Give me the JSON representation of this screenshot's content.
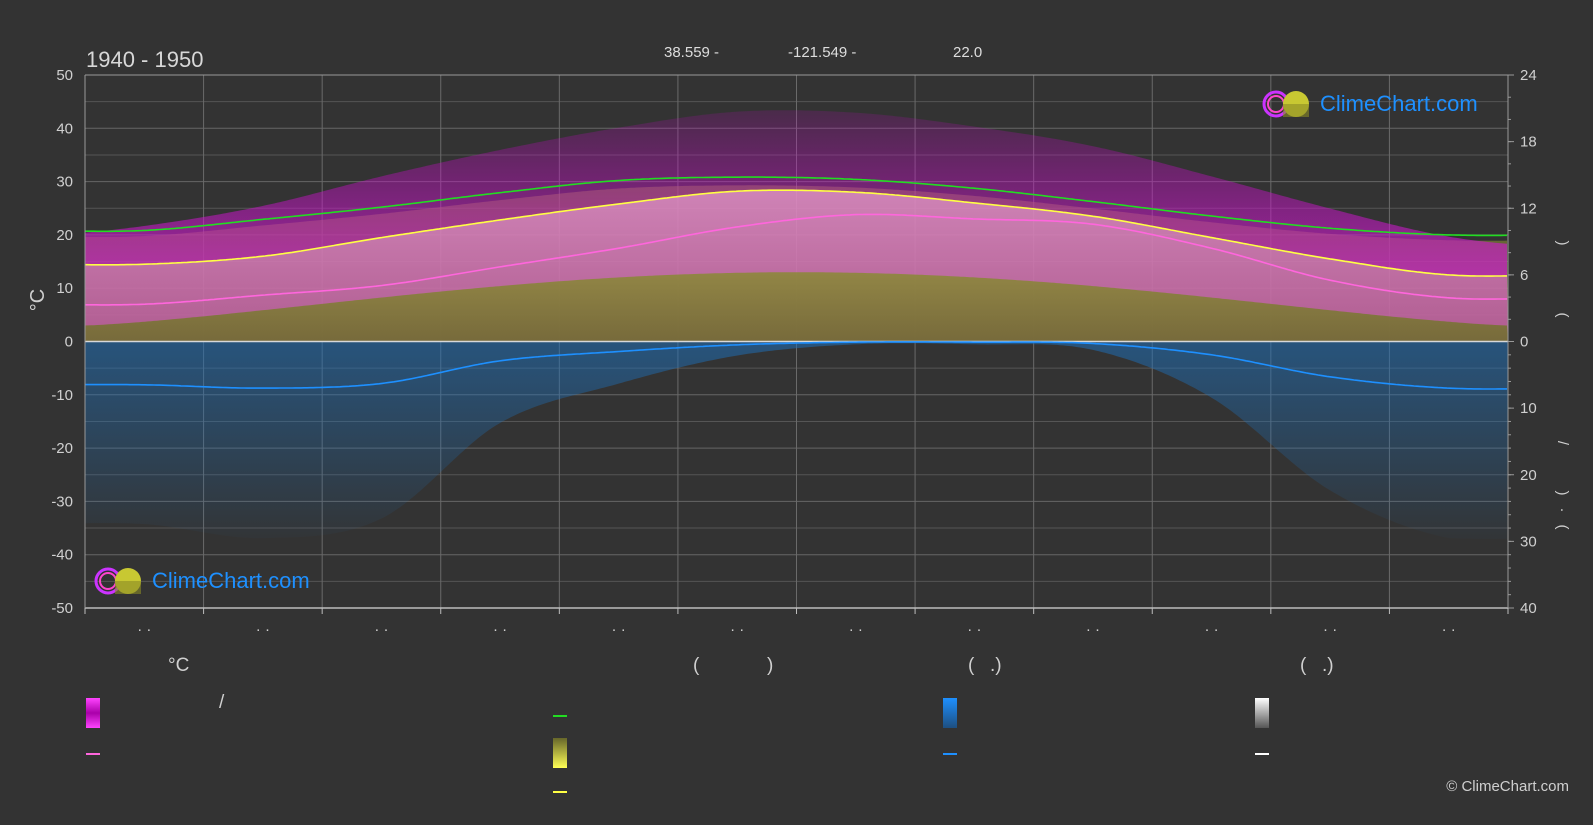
{
  "header": {
    "period": "1940 - 1950",
    "latitude": "38.559 -",
    "longitude": "-121.549 -",
    "elevation": "22.0"
  },
  "brand": {
    "name": "ClimeChart.com",
    "copyright": "© ClimeChart.com"
  },
  "colors": {
    "background": "#333333",
    "sunshine_curve": "#22dd22",
    "max_temp_band": "#e600e6",
    "mean_temp_curve": "#ff66dd",
    "sun_band": "#e8e830",
    "mean_max_curve": "#ffff44",
    "precip_band": "#1e7fd8",
    "precip_curve": "#1e90ff",
    "snow_band": "#ffffff",
    "brand_blue": "#1e90ff"
  },
  "chart_data": {
    "type": "area",
    "left_axis": {
      "label": "°C",
      "ylim": [
        -50,
        50
      ],
      "ticks": [
        "50",
        "40",
        "30",
        "20",
        "10",
        "0",
        "-10",
        "-20",
        "-30",
        "-40",
        "-50"
      ]
    },
    "right_axis_top": {
      "ylim": [
        0,
        24
      ],
      "ticks": [
        "24",
        "18",
        "12",
        "6",
        "0"
      ],
      "label_fragments": [
        ")",
        "("
      ]
    },
    "right_axis_bottom": {
      "ylim": [
        0,
        40
      ],
      "ticks": [
        "0",
        "10",
        "20",
        "30",
        "40"
      ],
      "label_fragments": [
        "/",
        ")",
        "·",
        "("
      ]
    },
    "month_tick_labels": [
      "· ·",
      "· ·",
      "· ·",
      "· ·",
      "· ·",
      "· ·",
      "· ·",
      "· ·",
      "· ·",
      "· ·",
      "· ·",
      "· ·"
    ],
    "x_months": [
      1,
      2,
      3,
      4,
      5,
      6,
      7,
      8,
      9,
      10,
      11,
      12
    ],
    "series": [
      {
        "role": "daylight",
        "values": [
          10.0,
          11.0,
          12.1,
          13.4,
          14.5,
          14.8,
          14.6,
          13.8,
          12.6,
          11.3,
          10.2,
          9.6
        ]
      },
      {
        "role": "mean_max",
        "values": [
          14.5,
          16.0,
          19.5,
          22.8,
          25.8,
          28.2,
          28.0,
          26.0,
          23.5,
          19.5,
          15.5,
          12.5
        ]
      },
      {
        "role": "mean",
        "values": [
          7.0,
          8.7,
          10.5,
          14.0,
          17.5,
          21.5,
          23.8,
          23.0,
          22.0,
          17.5,
          11.5,
          8.2
        ]
      },
      {
        "role": "precip",
        "values": [
          6.5,
          7.0,
          6.3,
          2.9,
          1.5,
          0.5,
          0.1,
          0.1,
          0.3,
          2.0,
          5.3,
          7.0
        ]
      }
    ],
    "legend_header_fragments": [
      "°C",
      "(",
      ")",
      "(",
      ".)",
      "(",
      ".)"
    ],
    "legend_fragments": [
      "/"
    ]
  }
}
